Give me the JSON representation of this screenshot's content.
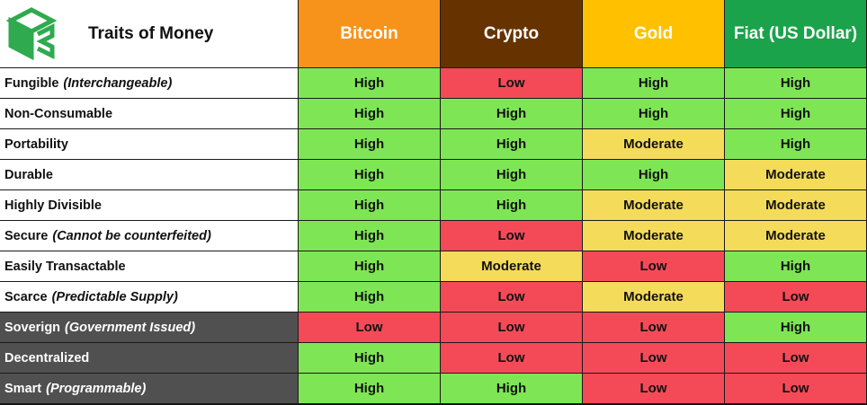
{
  "title": "Traits of Money",
  "columns": [
    {
      "key": "bitcoin",
      "label": "Bitcoin"
    },
    {
      "key": "crypto",
      "label": "Crypto"
    },
    {
      "key": "gold",
      "label": "Gold"
    },
    {
      "key": "fiat",
      "label": "Fiat (US Dollar)"
    }
  ],
  "colors": {
    "bitcoin": "#f7931a",
    "crypto": "#663300",
    "gold": "#ffc000",
    "fiat": "#1aa34a",
    "high": "#7ee654",
    "low": "#f44a58",
    "moderate": "#f4db5a",
    "dark_row": "#505050"
  },
  "rows": [
    {
      "trait": "Fungible",
      "note": "(Interchangeable)",
      "dark": false,
      "values": [
        "High",
        "Low",
        "High",
        "High"
      ]
    },
    {
      "trait": "Non-Consumable",
      "note": "",
      "dark": false,
      "values": [
        "High",
        "High",
        "High",
        "High"
      ]
    },
    {
      "trait": "Portability",
      "note": "",
      "dark": false,
      "values": [
        "High",
        "High",
        "Moderate",
        "High"
      ]
    },
    {
      "trait": "Durable",
      "note": "",
      "dark": false,
      "values": [
        "High",
        "High",
        "High",
        "Moderate"
      ]
    },
    {
      "trait": "Highly Divisible",
      "note": "",
      "dark": false,
      "values": [
        "High",
        "High",
        "Moderate",
        "Moderate"
      ]
    },
    {
      "trait": "Secure",
      "note": "(Cannot be counterfeited)",
      "dark": false,
      "values": [
        "High",
        "Low",
        "Moderate",
        "Moderate"
      ]
    },
    {
      "trait": "Easily Transactable",
      "note": "",
      "dark": false,
      "values": [
        "High",
        "Moderate",
        "Low",
        "High"
      ]
    },
    {
      "trait": "Scarce",
      "note": "(Predictable Supply)",
      "dark": false,
      "values": [
        "High",
        "Low",
        "Moderate",
        "Low"
      ]
    },
    {
      "trait": "Soverign",
      "note": "(Government Issued)",
      "dark": true,
      "values": [
        "Low",
        "Low",
        "Low",
        "High"
      ]
    },
    {
      "trait": "Decentralized",
      "note": "",
      "dark": true,
      "values": [
        "High",
        "Low",
        "Low",
        "Low"
      ]
    },
    {
      "trait": "Smart",
      "note": "(Programmable)",
      "dark": true,
      "values": [
        "High",
        "High",
        "Low",
        "Low"
      ]
    }
  ]
}
